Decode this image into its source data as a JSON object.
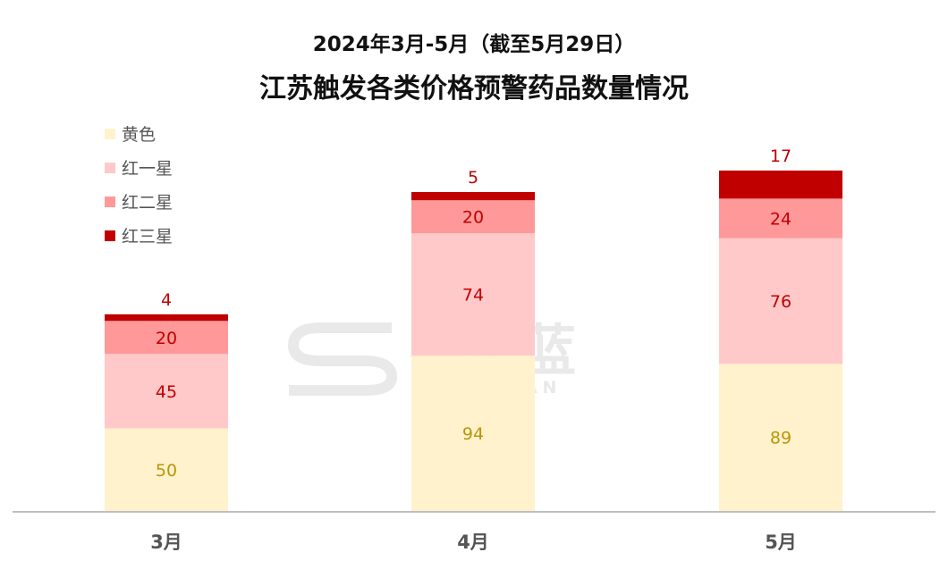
{
  "chart_data": {
    "type": "bar",
    "stacked": true,
    "title": "2024年3月-5月（截至5月29日）",
    "subtitle": "江苏触发各类价格预警药品数量情况",
    "categories": [
      "3月",
      "4月",
      "5月"
    ],
    "series": [
      {
        "name": "黄色",
        "values": [
          50,
          94,
          89
        ],
        "color": "#FFF2CC",
        "label_color": "#B8960A"
      },
      {
        "name": "红一星",
        "values": [
          45,
          74,
          76
        ],
        "color": "#FFC9C9",
        "label_color": "#C00000"
      },
      {
        "name": "红二星",
        "values": [
          20,
          20,
          24
        ],
        "color": "#FF9999",
        "label_color": "#C00000"
      },
      {
        "name": "红三星",
        "values": [
          4,
          5,
          17
        ],
        "color": "#C00000",
        "label_color": "#C00000"
      }
    ],
    "ylim": [
      0,
      210
    ],
    "grid": false,
    "legend_position": "top-left"
  },
  "watermark": {
    "text": "赛柏蓝",
    "subtext": "SAIBAILAN"
  }
}
